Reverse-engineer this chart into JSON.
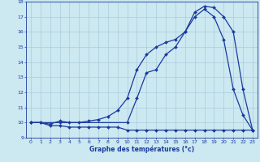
{
  "bg_color": "#cce8f0",
  "grid_color": "#aaccdd",
  "line_color": "#1a3a9e",
  "xlabel": "Graphe des températures (°c)",
  "xlim": [
    -0.5,
    23.5
  ],
  "ylim": [
    9,
    18
  ],
  "yticks": [
    9,
    10,
    11,
    12,
    13,
    14,
    15,
    16,
    17,
    18
  ],
  "xticks": [
    0,
    1,
    2,
    3,
    4,
    5,
    6,
    7,
    8,
    9,
    10,
    11,
    12,
    13,
    14,
    15,
    16,
    17,
    18,
    19,
    20,
    21,
    22,
    23
  ],
  "series1_x": [
    0,
    1,
    2,
    3,
    4,
    5,
    6,
    7,
    8,
    9,
    10,
    11,
    12,
    13,
    14,
    15,
    16,
    17,
    18,
    19,
    20,
    21,
    22,
    23
  ],
  "series1_y": [
    10.0,
    10.0,
    9.8,
    9.8,
    9.7,
    9.7,
    9.7,
    9.7,
    9.7,
    9.7,
    9.5,
    9.5,
    9.5,
    9.5,
    9.5,
    9.5,
    9.5,
    9.5,
    9.5,
    9.5,
    9.5,
    9.5,
    9.5,
    9.5
  ],
  "series2_x": [
    0,
    1,
    2,
    3,
    4,
    5,
    6,
    7,
    8,
    9,
    10,
    11,
    12,
    13,
    14,
    15,
    16,
    17,
    18,
    19,
    20,
    21,
    22,
    23
  ],
  "series2_y": [
    10.0,
    10.0,
    9.9,
    10.1,
    10.0,
    10.0,
    10.1,
    10.2,
    10.4,
    10.8,
    11.6,
    13.5,
    14.5,
    15.0,
    15.3,
    15.5,
    16.0,
    17.0,
    17.5,
    17.0,
    15.5,
    12.2,
    10.5,
    9.5
  ],
  "series3_x": [
    0,
    3,
    10,
    11,
    12,
    13,
    14,
    15,
    16,
    17,
    18,
    19,
    20,
    21,
    22,
    23
  ],
  "series3_y": [
    10.0,
    10.0,
    10.0,
    11.6,
    13.3,
    13.5,
    14.5,
    15.0,
    16.0,
    17.3,
    17.7,
    17.6,
    17.0,
    16.0,
    12.2,
    9.5
  ]
}
